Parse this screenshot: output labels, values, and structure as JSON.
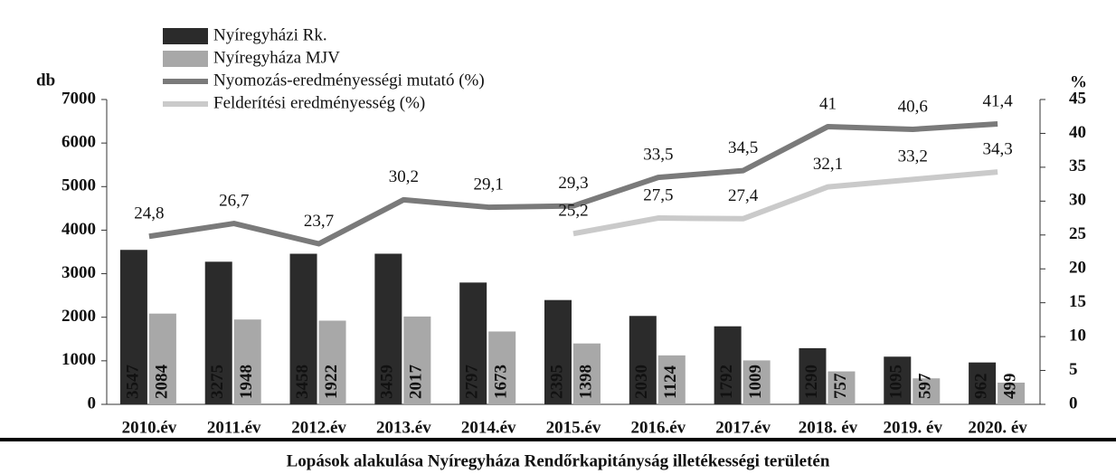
{
  "chart_data": {
    "type": "bar-line",
    "title": "Lopások alakulása Nyíregyháza Rendőrkapitányság illetékességi területén",
    "y_label": "db",
    "y2_label": "%",
    "categories": [
      "2010.év",
      "2011.év",
      "2012.év",
      "2013.év",
      "2014.év",
      "2015.év",
      "2016.év",
      "2017.év",
      "2018. év",
      "2019. év",
      "2020. év"
    ],
    "ylim": [
      0,
      7000
    ],
    "yticks": [
      0,
      1000,
      2000,
      3000,
      4000,
      5000,
      6000,
      7000
    ],
    "y2lim": [
      0,
      45
    ],
    "y2ticks": [
      0,
      5,
      10,
      15,
      20,
      25,
      30,
      35,
      40,
      45
    ],
    "series": [
      {
        "name": "Nyíregyházi Rk.",
        "type": "bar",
        "color": "#2b2b2b",
        "values": [
          3547,
          3275,
          3458,
          3459,
          2797,
          2395,
          2030,
          1792,
          1290,
          1095,
          962
        ]
      },
      {
        "name": "Nyíregyháza MJV",
        "type": "bar",
        "color": "#a8a8a8",
        "values": [
          2084,
          1948,
          1922,
          2017,
          1673,
          1398,
          1124,
          1009,
          757,
          597,
          499
        ]
      },
      {
        "name": "Nyomozás-eredményességi mutató (%)",
        "type": "line",
        "axis": "y2",
        "color": "#7a7a7a",
        "values": [
          24.8,
          26.7,
          23.7,
          30.2,
          29.1,
          29.3,
          33.5,
          34.5,
          41,
          40.6,
          41.4
        ],
        "value_labels": [
          "24,8",
          "26,7",
          "23,7",
          "30,2",
          "29,1",
          "29,3",
          "33,5",
          "34,5",
          "41",
          "40,6",
          "41,4"
        ]
      },
      {
        "name": "Felderítési eredményesség (%)",
        "type": "line",
        "axis": "y2",
        "color": "#cacaca",
        "values": [
          null,
          null,
          null,
          null,
          null,
          25.2,
          27.5,
          27.4,
          32.1,
          33.2,
          34.3
        ],
        "value_labels": [
          null,
          null,
          null,
          null,
          null,
          "25,2",
          "27,5",
          "27,4",
          "32,1",
          "33,2",
          "34,3"
        ]
      }
    ]
  }
}
